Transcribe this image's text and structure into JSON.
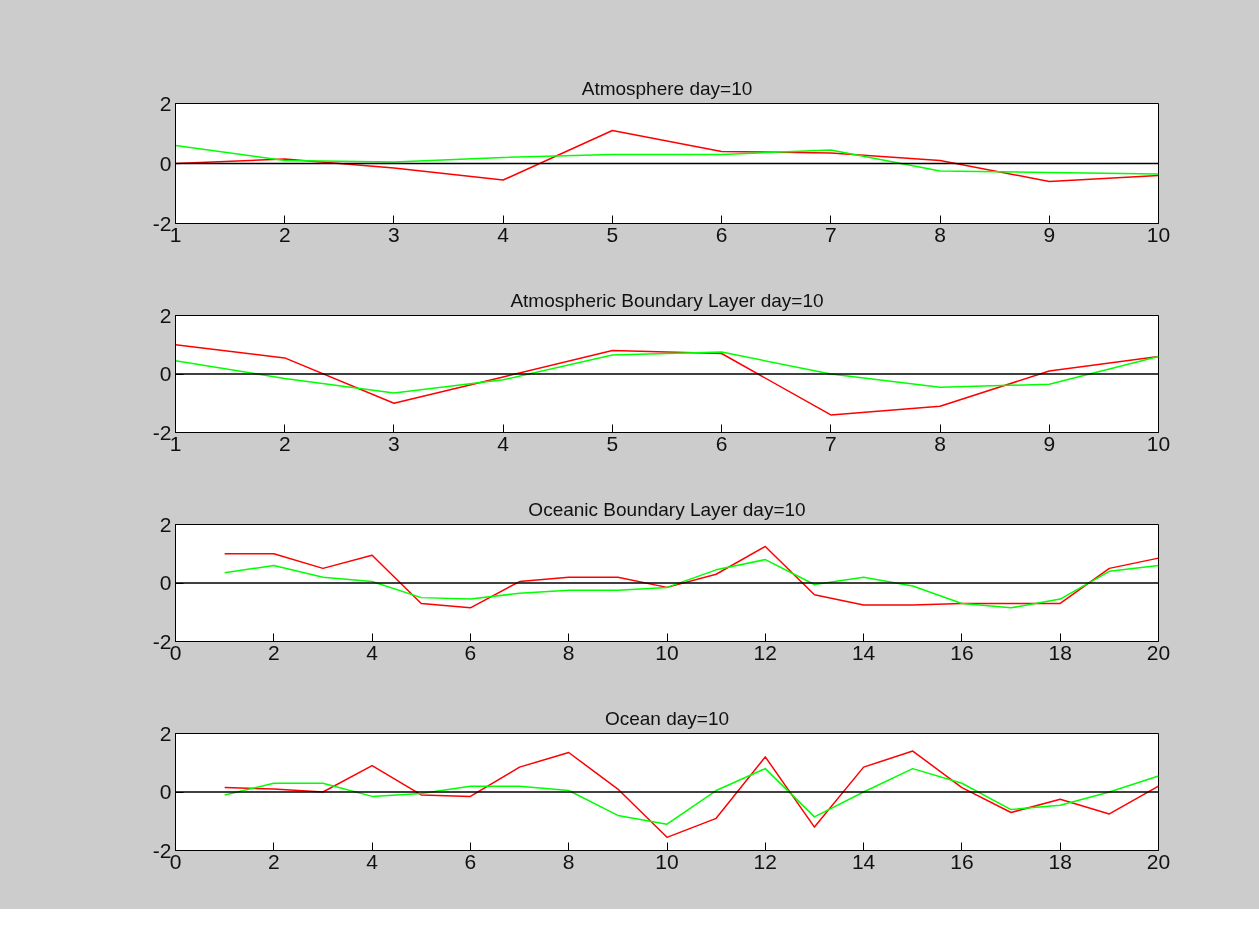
{
  "chart_data": [
    {
      "type": "line",
      "title": "Atmosphere day=10",
      "x": [
        1,
        2,
        3,
        4,
        5,
        6,
        7,
        8,
        9,
        10
      ],
      "xlim": [
        1,
        10
      ],
      "xticks": [
        1,
        2,
        3,
        4,
        5,
        6,
        7,
        8,
        9,
        10
      ],
      "ylim": [
        -2,
        2
      ],
      "yticks": [
        -2,
        0,
        2
      ],
      "ref_lines": [
        {
          "axis": "y",
          "value": 0,
          "color": "#000000"
        }
      ],
      "series": [
        {
          "color": "#ff0000",
          "values": [
            0,
            0.15,
            -0.15,
            -0.55,
            1.1,
            0.4,
            0.35,
            0.1,
            -0.6,
            -0.4
          ]
        },
        {
          "color": "#00ff00",
          "values": [
            0.6,
            0.1,
            0.05,
            0.2,
            0.3,
            0.3,
            0.45,
            -0.25,
            -0.3,
            -0.35
          ]
        }
      ]
    },
    {
      "type": "line",
      "title": "Atmospheric Boundary Layer day=10",
      "x": [
        1,
        2,
        3,
        4,
        5,
        6,
        7,
        8,
        9,
        10
      ],
      "xlim": [
        1,
        10
      ],
      "xticks": [
        1,
        2,
        3,
        4,
        5,
        6,
        7,
        8,
        9,
        10
      ],
      "ylim": [
        -2,
        2
      ],
      "yticks": [
        -2,
        0,
        2
      ],
      "ref_lines": [
        {
          "axis": "y",
          "value": 0,
          "color": "#000000"
        }
      ],
      "series": [
        {
          "color": "#ff0000",
          "values": [
            1.0,
            0.55,
            -1.0,
            -0.1,
            0.8,
            0.7,
            -1.4,
            -1.1,
            0.1,
            0.6
          ]
        },
        {
          "color": "#00ff00",
          "values": [
            0.45,
            -0.15,
            -0.65,
            -0.2,
            0.65,
            0.75,
            0.0,
            -0.45,
            -0.35,
            0.6
          ]
        }
      ]
    },
    {
      "type": "line",
      "title": "Oceanic Boundary Layer day=10",
      "x": [
        1,
        2,
        3,
        4,
        5,
        6,
        7,
        8,
        9,
        10,
        11,
        12,
        13,
        14,
        15,
        16,
        17,
        18,
        19,
        20
      ],
      "xlim": [
        0,
        20
      ],
      "xticks": [
        0,
        2,
        4,
        6,
        8,
        10,
        12,
        14,
        16,
        18,
        20
      ],
      "ylim": [
        -2,
        2
      ],
      "yticks": [
        -2,
        0,
        2
      ],
      "ref_lines": [
        {
          "axis": "y",
          "value": 0,
          "color": "#000000"
        }
      ],
      "series": [
        {
          "color": "#ff0000",
          "values": [
            1.0,
            1.0,
            0.5,
            0.95,
            -0.7,
            -0.85,
            0.05,
            0.2,
            0.2,
            -0.15,
            0.3,
            1.25,
            -0.4,
            -0.75,
            -0.75,
            -0.7,
            -0.7,
            -0.7,
            0.5,
            0.85
          ]
        },
        {
          "color": "#00ff00",
          "values": [
            0.35,
            0.6,
            0.2,
            0.05,
            -0.5,
            -0.55,
            -0.35,
            -0.25,
            -0.25,
            -0.15,
            0.45,
            0.8,
            -0.05,
            0.2,
            -0.1,
            -0.7,
            -0.85,
            -0.55,
            0.4,
            0.6
          ]
        }
      ]
    },
    {
      "type": "line",
      "title": "Ocean day=10",
      "x": [
        1,
        2,
        3,
        4,
        5,
        6,
        7,
        8,
        9,
        10,
        11,
        12,
        13,
        14,
        15,
        16,
        17,
        18,
        19,
        20
      ],
      "xlim": [
        0,
        20
      ],
      "xticks": [
        0,
        2,
        4,
        6,
        8,
        10,
        12,
        14,
        16,
        18,
        20
      ],
      "ylim": [
        -2,
        2
      ],
      "yticks": [
        -2,
        0,
        2
      ],
      "ref_lines": [
        {
          "axis": "y",
          "value": 0,
          "color": "#000000"
        }
      ],
      "series": [
        {
          "color": "#ff0000",
          "values": [
            0.15,
            0.1,
            0.0,
            0.9,
            -0.1,
            -0.15,
            0.85,
            1.35,
            0.1,
            -1.55,
            -0.9,
            1.2,
            -1.2,
            0.85,
            1.4,
            0.15,
            -0.7,
            -0.25,
            -0.75,
            0.2
          ]
        },
        {
          "color": "#00ff00",
          "values": [
            -0.1,
            0.3,
            0.3,
            -0.15,
            -0.05,
            0.2,
            0.2,
            0.05,
            -0.8,
            -1.1,
            0.05,
            0.8,
            -0.85,
            0.0,
            0.8,
            0.3,
            -0.6,
            -0.45,
            0.0,
            0.55
          ]
        }
      ]
    }
  ]
}
